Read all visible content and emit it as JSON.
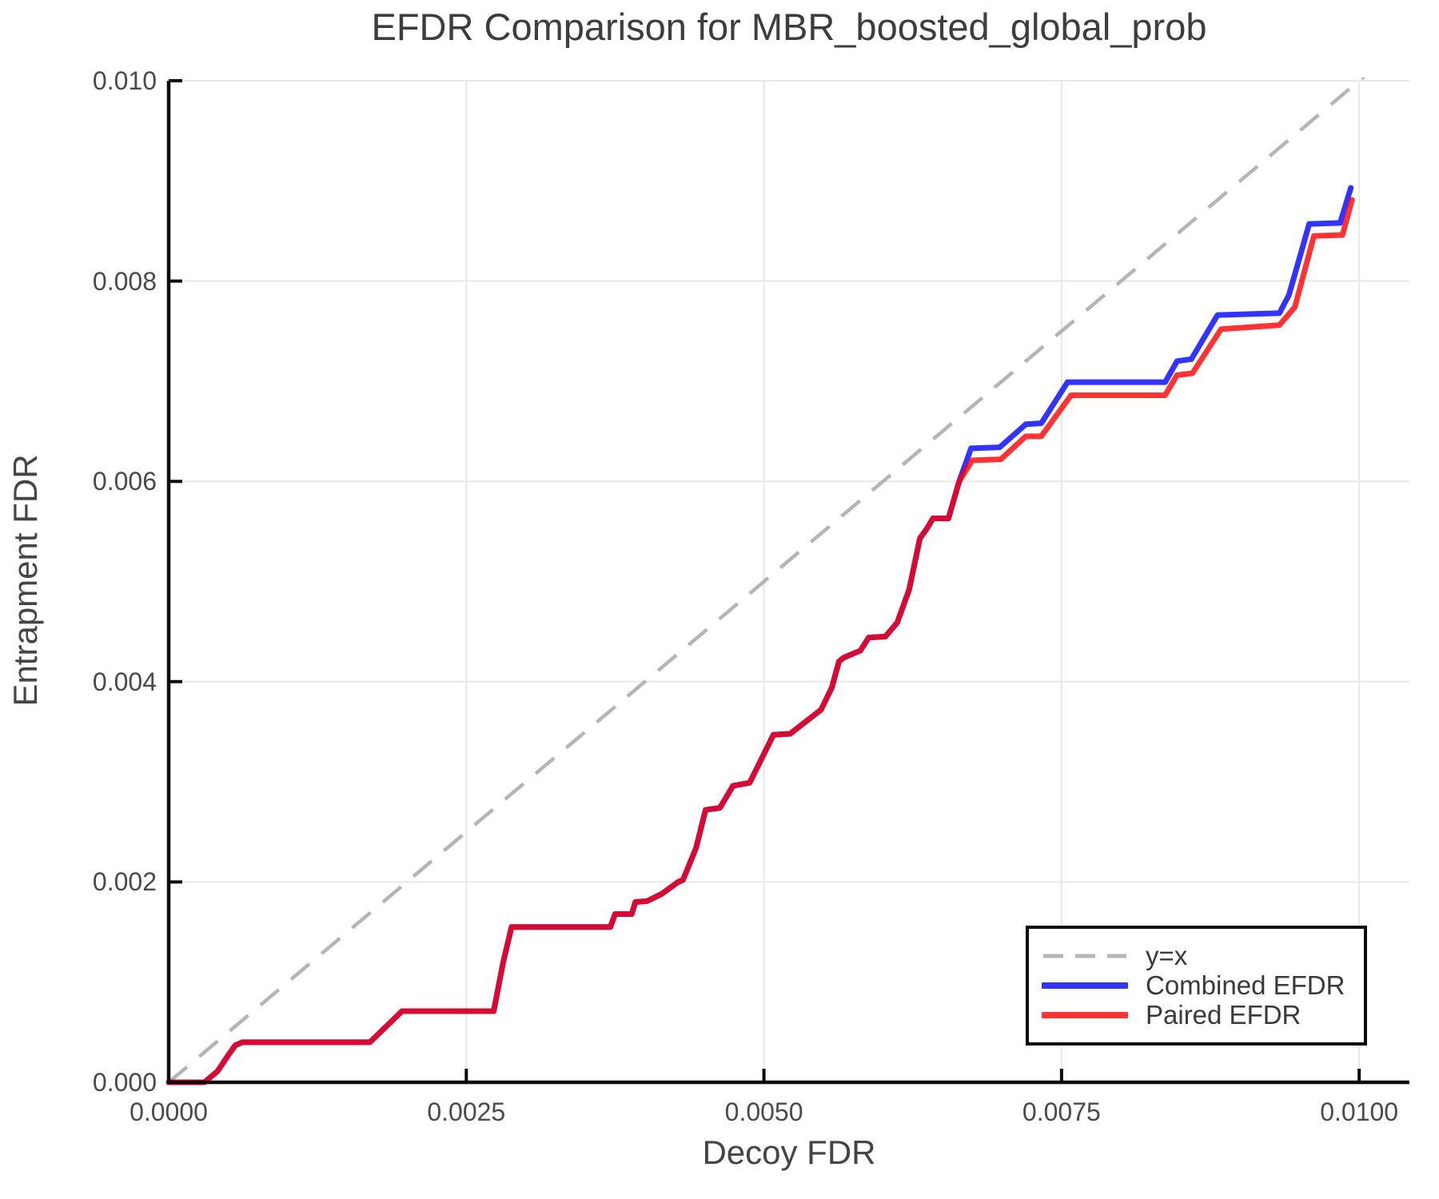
{
  "title": "EFDR Comparison for MBR_boosted_global_prob",
  "axes": {
    "x_label": "Decoy FDR",
    "y_label": "Entrapment FDR",
    "x_tick_labels": [
      "0.0000",
      "0.0025",
      "0.0050",
      "0.0075",
      "0.0100"
    ],
    "y_tick_labels": [
      "0.000",
      "0.002",
      "0.004",
      "0.006",
      "0.008",
      "0.010"
    ]
  },
  "legend": {
    "entries": [
      {
        "label": "y=x",
        "style": "dashed",
        "color": "#b5b5b5"
      },
      {
        "label": "Combined EFDR",
        "style": "solid",
        "color": "#0000ff"
      },
      {
        "label": "Paired EFDR",
        "style": "solid",
        "color": "#ff0000"
      }
    ],
    "position": "lower right"
  },
  "colors": {
    "grid": "#e8e8e8",
    "spine": "#0c0c0c",
    "reference_line": "#b5b5b5",
    "combined": "#0000ff",
    "paired": "#ff0000",
    "line_alpha": 0.8
  },
  "chart_data": {
    "type": "line",
    "title": "EFDR Comparison for MBR_boosted_global_prob",
    "xlabel": "Decoy FDR",
    "ylabel": "Entrapment FDR",
    "xlim": [
      0,
      0.010422
    ],
    "ylim": [
      0,
      0.01
    ],
    "x_tick_values": [
      0,
      0.0025,
      0.005,
      0.0075,
      0.01
    ],
    "y_tick_values": [
      0,
      0.002,
      0.004,
      0.006,
      0.008,
      0.01
    ],
    "grid": true,
    "legend_position": "lower right",
    "reference_line": {
      "name": "y=x",
      "points": [
        [
          0,
          0
        ],
        [
          0.0105,
          0.0105
        ]
      ]
    },
    "series": [
      {
        "name": "Combined EFDR",
        "points": [
          [
            0.0,
            0.0
          ],
          [
            0.0003,
            0.0
          ],
          [
            0.00041,
            0.00011
          ],
          [
            0.0005,
            0.00027
          ],
          [
            0.00056,
            0.00037
          ],
          [
            0.00062,
            0.0004
          ],
          [
            0.00169,
            0.0004
          ],
          [
            0.00196,
            0.00071
          ],
          [
            0.00273,
            0.00071
          ],
          [
            0.00281,
            0.0012
          ],
          [
            0.00288,
            0.00155
          ],
          [
            0.00371,
            0.00155
          ],
          [
            0.00375,
            0.00168
          ],
          [
            0.00389,
            0.00168
          ],
          [
            0.00392,
            0.0018
          ],
          [
            0.00402,
            0.00181
          ],
          [
            0.00414,
            0.00188
          ],
          [
            0.00428,
            0.002
          ],
          [
            0.00432,
            0.00202
          ],
          [
            0.00443,
            0.00234
          ],
          [
            0.00451,
            0.00272
          ],
          [
            0.00463,
            0.00274
          ],
          [
            0.00474,
            0.00296
          ],
          [
            0.00488,
            0.00299
          ],
          [
            0.00508,
            0.00347
          ],
          [
            0.00522,
            0.00348
          ],
          [
            0.00548,
            0.00372
          ],
          [
            0.00557,
            0.00394
          ],
          [
            0.00563,
            0.0042
          ],
          [
            0.00567,
            0.00424
          ],
          [
            0.00581,
            0.00431
          ],
          [
            0.00588,
            0.00444
          ],
          [
            0.00602,
            0.00445
          ],
          [
            0.00612,
            0.00459
          ],
          [
            0.00622,
            0.00492
          ],
          [
            0.00631,
            0.00543
          ],
          [
            0.00637,
            0.00553
          ],
          [
            0.00642,
            0.00563
          ],
          [
            0.00655,
            0.00563
          ],
          [
            0.00664,
            0.006
          ],
          [
            0.00674,
            0.00633
          ],
          [
            0.00698,
            0.00634
          ],
          [
            0.0072,
            0.00657
          ],
          [
            0.00733,
            0.00658
          ],
          [
            0.00755,
            0.00699
          ],
          [
            0.00837,
            0.00699
          ],
          [
            0.00847,
            0.0072
          ],
          [
            0.00859,
            0.00722
          ],
          [
            0.00881,
            0.00766
          ],
          [
            0.00933,
            0.00768
          ],
          [
            0.00941,
            0.00786
          ],
          [
            0.00958,
            0.00857
          ],
          [
            0.00984,
            0.00858
          ],
          [
            0.00993,
            0.00893
          ]
        ]
      },
      {
        "name": "Paired EFDR",
        "points": [
          [
            0.0,
            0.0
          ],
          [
            0.0003,
            0.0
          ],
          [
            0.00041,
            0.00011
          ],
          [
            0.0005,
            0.00027
          ],
          [
            0.00056,
            0.00037
          ],
          [
            0.00062,
            0.0004
          ],
          [
            0.00169,
            0.0004
          ],
          [
            0.00196,
            0.00071
          ],
          [
            0.00273,
            0.00071
          ],
          [
            0.00281,
            0.0012
          ],
          [
            0.00288,
            0.00155
          ],
          [
            0.00371,
            0.00155
          ],
          [
            0.00375,
            0.00168
          ],
          [
            0.00389,
            0.00168
          ],
          [
            0.00392,
            0.0018
          ],
          [
            0.00402,
            0.00181
          ],
          [
            0.00414,
            0.00188
          ],
          [
            0.00428,
            0.002
          ],
          [
            0.00432,
            0.00202
          ],
          [
            0.00443,
            0.00234
          ],
          [
            0.00451,
            0.00272
          ],
          [
            0.00463,
            0.00274
          ],
          [
            0.00474,
            0.00296
          ],
          [
            0.00488,
            0.00299
          ],
          [
            0.00508,
            0.00347
          ],
          [
            0.00522,
            0.00348
          ],
          [
            0.00548,
            0.00372
          ],
          [
            0.00557,
            0.00394
          ],
          [
            0.00563,
            0.0042
          ],
          [
            0.00567,
            0.00424
          ],
          [
            0.00581,
            0.00431
          ],
          [
            0.00588,
            0.00444
          ],
          [
            0.00602,
            0.00445
          ],
          [
            0.00612,
            0.00459
          ],
          [
            0.00622,
            0.00492
          ],
          [
            0.00631,
            0.00543
          ],
          [
            0.00637,
            0.00553
          ],
          [
            0.00642,
            0.00563
          ],
          [
            0.00655,
            0.00563
          ],
          [
            0.00664,
            0.006
          ],
          [
            0.00675,
            0.00621
          ],
          [
            0.00699,
            0.00622
          ],
          [
            0.0072,
            0.00645
          ],
          [
            0.00733,
            0.00645
          ],
          [
            0.00758,
            0.00686
          ],
          [
            0.00837,
            0.00686
          ],
          [
            0.00847,
            0.00706
          ],
          [
            0.0086,
            0.00708
          ],
          [
            0.00884,
            0.00752
          ],
          [
            0.00933,
            0.00756
          ],
          [
            0.00946,
            0.00774
          ],
          [
            0.00962,
            0.00845
          ],
          [
            0.00986,
            0.00846
          ],
          [
            0.00994,
            0.00881
          ]
        ]
      }
    ]
  }
}
